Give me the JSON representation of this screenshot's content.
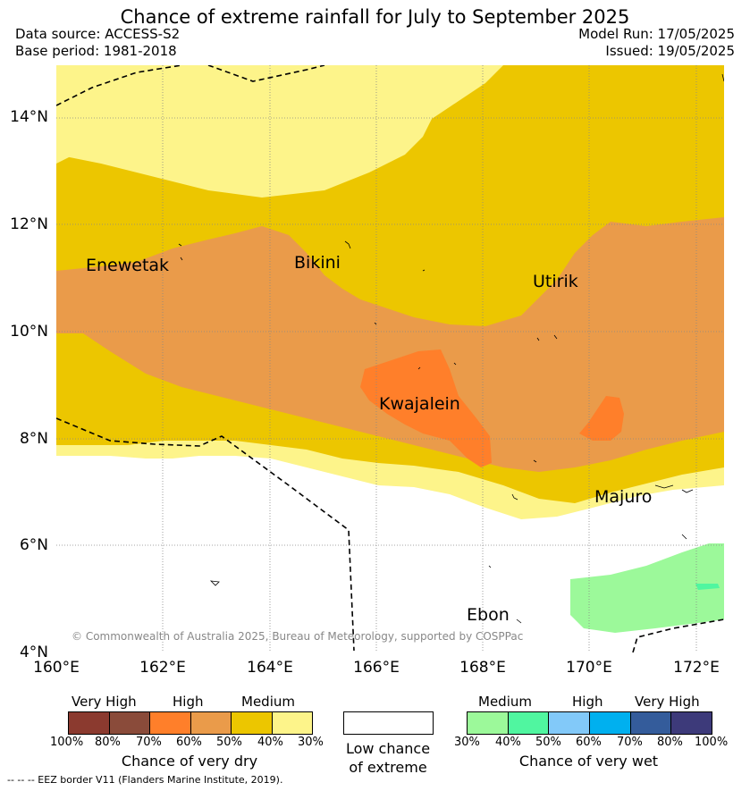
{
  "title": "Chance of extreme rainfall for July to September 2025",
  "header": {
    "data_source": "Data source: ACCESS-S2",
    "base_period": "Base period: 1981-2018",
    "model_run": "Model Run: 17/05/2025",
    "issued": "Issued: 19/05/2025"
  },
  "map": {
    "lat_labels": [
      "14°N",
      "12°N",
      "10°N",
      "8°N",
      "6°N",
      "4°N"
    ],
    "lon_labels": [
      "160°E",
      "162°E",
      "164°E",
      "166°E",
      "168°E",
      "170°E",
      "172°E"
    ],
    "places": [
      "Enewetak",
      "Bikini",
      "Utirik",
      "Kwajalein",
      "Majuro",
      "Ebon"
    ],
    "copyright": "© Commonwealth of Australia 2025, Bureau of Meteorology, supported by COSPPac",
    "colors": {
      "very_high_dry_2": "#8b3a2f",
      "very_high_dry_1": "#8a4b3a",
      "high_dry_1": "#ff7f2a",
      "high_dry_2": "#ea9b4a",
      "medium_dry_1": "#ecc600",
      "medium_dry_2": "#fdf48a",
      "medium_wet_1": "#9cf99a",
      "medium_wet_2": "#50f6a0",
      "high_wet_1": "#82c9f9",
      "high_wet_2": "#00b0ef",
      "very_high_wet_1": "#345c9b",
      "very_high_wet_2": "#3d3a7a"
    }
  },
  "legend_dry": {
    "headers": [
      "Very High",
      "High",
      "Medium"
    ],
    "ticks": [
      "100%",
      "80%",
      "70%",
      "60%",
      "50%",
      "40%",
      "30%"
    ],
    "label": "Chance of very dry"
  },
  "legend_low": {
    "line1": "Low chance",
    "line2": "of extreme"
  },
  "legend_wet": {
    "headers": [
      "Medium",
      "High",
      "Very High"
    ],
    "ticks": [
      "30%",
      "40%",
      "50%",
      "60%",
      "70%",
      "80%",
      "100%"
    ],
    "label": "Chance of very wet"
  },
  "footer": "--  --  -- EEZ border V11 (Flanders Marine Institute, 2019)."
}
